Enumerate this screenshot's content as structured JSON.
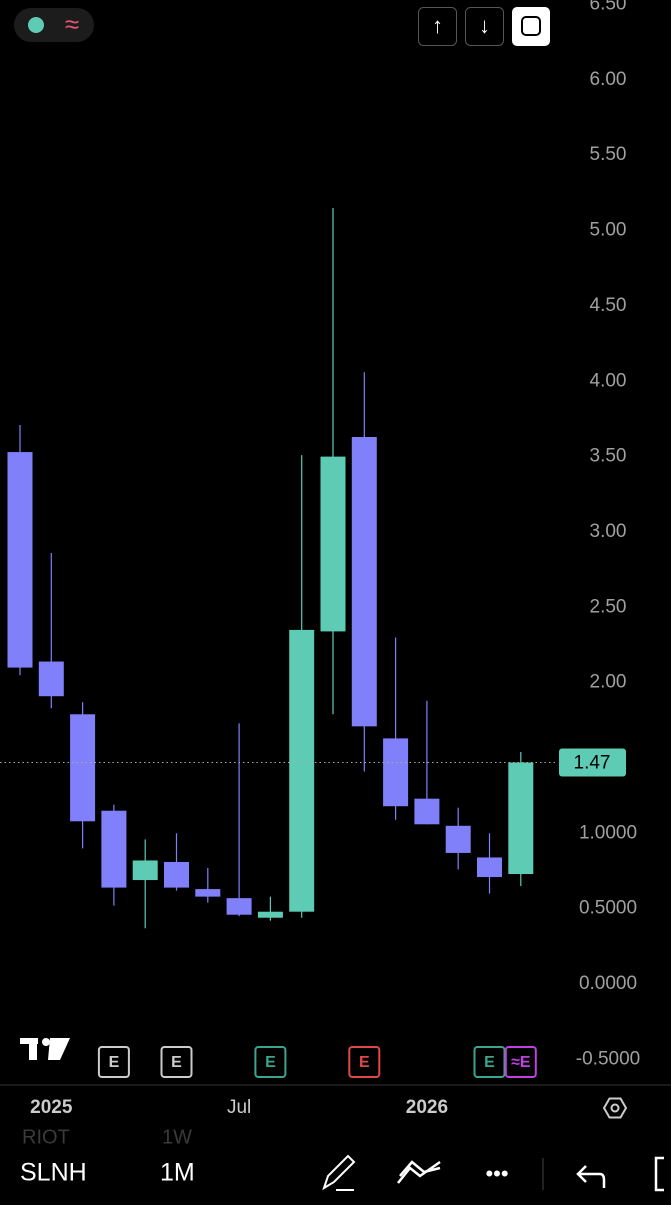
{
  "chart_data": {
    "type": "candlestick",
    "categories": [
      null,
      "2025",
      null,
      null,
      null,
      null,
      null,
      "Jul",
      null,
      null,
      null,
      null,
      null,
      "2026",
      null,
      null,
      null
    ],
    "open": [
      3.53,
      2.14,
      1.79,
      1.15,
      0.69,
      0.81,
      0.63,
      0.57,
      0.44,
      0.48,
      2.34,
      3.63,
      1.63,
      1.23,
      1.05,
      0.84,
      0.73
    ],
    "high": [
      3.71,
      2.86,
      1.87,
      1.19,
      0.96,
      1.0,
      0.77,
      1.73,
      0.58,
      3.51,
      5.15,
      4.06,
      2.3,
      1.88,
      1.17,
      1.0,
      1.54
    ],
    "low": [
      2.05,
      1.83,
      0.9,
      0.52,
      0.37,
      0.62,
      0.54,
      0.45,
      0.42,
      0.44,
      1.79,
      1.41,
      1.09,
      1.06,
      0.76,
      0.6,
      0.65
    ],
    "close": [
      2.1,
      1.91,
      1.08,
      0.64,
      0.82,
      0.64,
      0.58,
      0.46,
      0.48,
      2.35,
      3.5,
      1.71,
      1.18,
      1.06,
      0.87,
      0.71,
      1.47
    ],
    "up_color": "#5ecbb5",
    "down_color": "#8080fa",
    "last_price": {
      "value": 1.47,
      "label": "1.47"
    },
    "ylim": [
      -0.67,
      6.53
    ],
    "yticks": [
      {
        "value": 6.5,
        "label": "6.50"
      },
      {
        "value": 6,
        "label": "6.00"
      },
      {
        "value": 5.5,
        "label": "5.50"
      },
      {
        "value": 5,
        "label": "5.00"
      },
      {
        "value": 4.5,
        "label": "4.50"
      },
      {
        "value": 4,
        "label": "4.00"
      },
      {
        "value": 3.5,
        "label": "3.50"
      },
      {
        "value": 3,
        "label": "3.00"
      },
      {
        "value": 2.5,
        "label": "2.50"
      },
      {
        "value": 2,
        "label": "2.00"
      },
      {
        "value": 1,
        "label": "1.0000"
      },
      {
        "value": 0.5,
        "label": "0.5000"
      },
      {
        "value": 0,
        "label": "0.0000"
      },
      {
        "value": -0.5,
        "label": "-0.5000"
      }
    ],
    "grid": false
  },
  "ui": {
    "toggle_icon": "≈",
    "up_arrow": "↑",
    "down_arrow": "↓",
    "events": [
      {
        "label": "E",
        "color": "#cccccc",
        "index": 3
      },
      {
        "label": "E",
        "color": "#cccccc",
        "index": 5
      },
      {
        "label": "E",
        "color": "#3aa58c",
        "index": 8
      },
      {
        "label": "E",
        "color": "#e0484a",
        "index": 11
      },
      {
        "label": "E",
        "color": "#3aa58c",
        "index": 15
      },
      {
        "label": "≈E",
        "color": "#c040e0",
        "index": 16
      }
    ],
    "prev_symbol": "RIOT",
    "prev_interval": "1W",
    "symbol": "SLNH",
    "interval": "1M",
    "more": "•••"
  }
}
